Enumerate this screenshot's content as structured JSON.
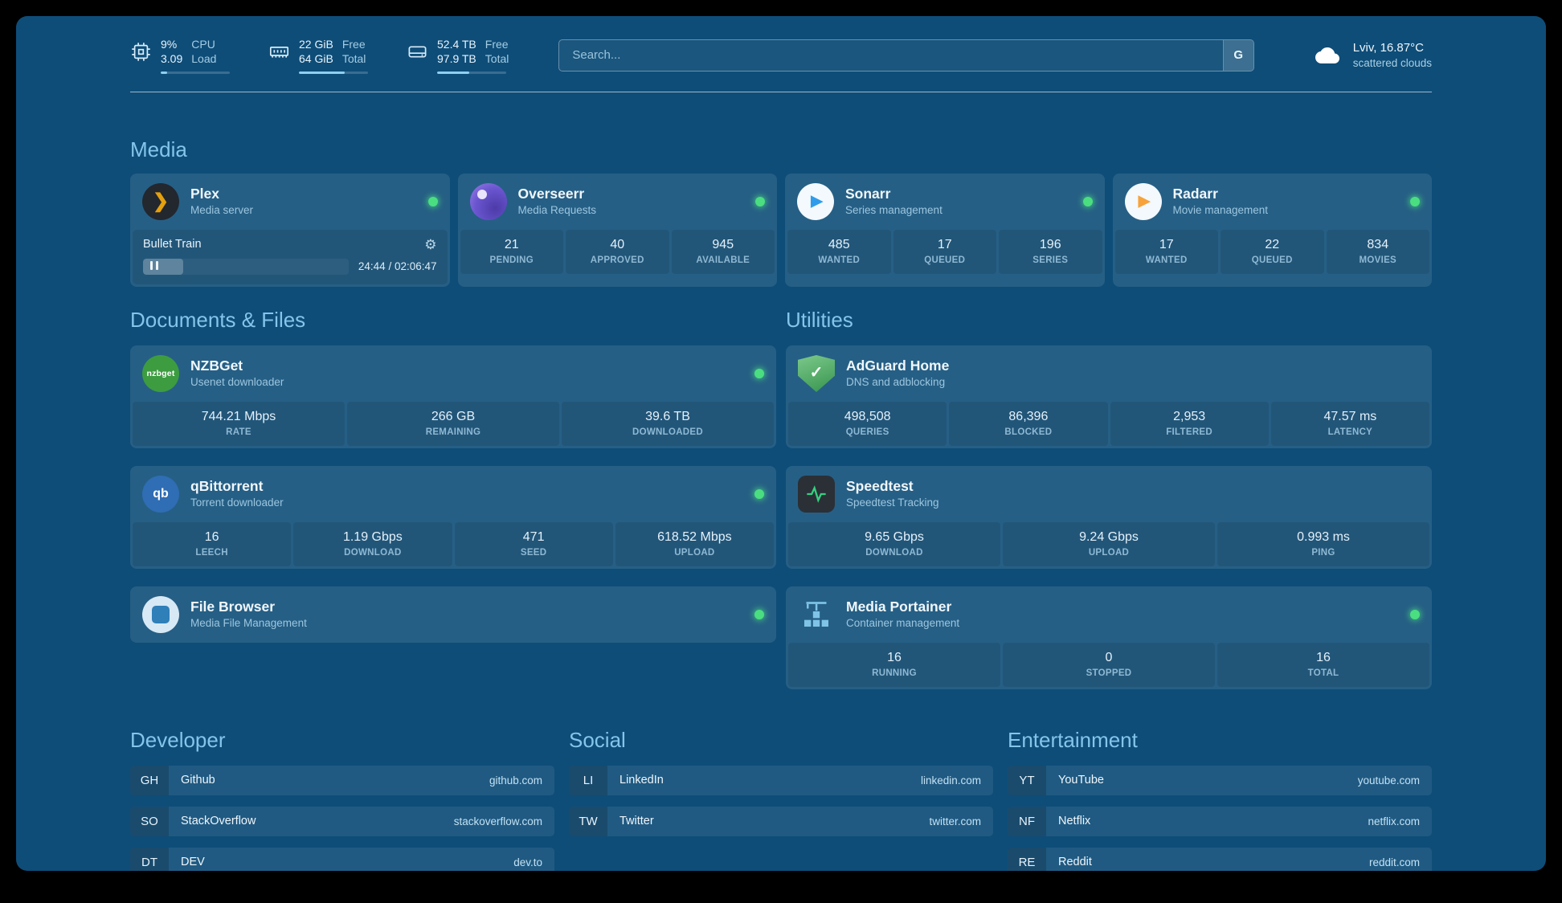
{
  "topbar": {
    "resources": [
      {
        "icon": "cpu-icon",
        "value_primary": "9%",
        "value_secondary": "3.09",
        "label_primary": "CPU",
        "label_secondary": "Load",
        "progress_percent": 9
      },
      {
        "icon": "memory-icon",
        "value_primary": "22 GiB",
        "value_secondary": "64 GiB",
        "label_primary": "Free",
        "label_secondary": "Total",
        "progress_percent": 66
      },
      {
        "icon": "disk-icon",
        "value_primary": "52.4 TB",
        "value_secondary": "97.9 TB",
        "label_primary": "Free",
        "label_secondary": "Total",
        "progress_percent": 46
      }
    ],
    "search": {
      "placeholder": "Search...",
      "provider_label": "G"
    },
    "weather": {
      "location": "Lviv, 16.87°C",
      "condition": "scattered clouds"
    }
  },
  "sections": {
    "media": {
      "title": "Media",
      "plex": {
        "name": "Plex",
        "subtitle": "Media server",
        "online": true,
        "now_playing": {
          "title": "Bullet Train",
          "time": "24:44 / 02:06:47",
          "progress_percent": 19.5
        }
      },
      "cards": [
        {
          "name": "Overseerr",
          "subtitle": "Media Requests",
          "online": true,
          "stats": [
            {
              "value": "21",
              "label": "PENDING"
            },
            {
              "value": "40",
              "label": "APPROVED"
            },
            {
              "value": "945",
              "label": "AVAILABLE"
            }
          ]
        },
        {
          "name": "Sonarr",
          "subtitle": "Series management",
          "online": true,
          "stats": [
            {
              "value": "485",
              "label": "WANTED"
            },
            {
              "value": "17",
              "label": "QUEUED"
            },
            {
              "value": "196",
              "label": "SERIES"
            }
          ]
        },
        {
          "name": "Radarr",
          "subtitle": "Movie management",
          "online": true,
          "stats": [
            {
              "value": "17",
              "label": "WANTED"
            },
            {
              "value": "22",
              "label": "QUEUED"
            },
            {
              "value": "834",
              "label": "MOVIES"
            }
          ]
        }
      ]
    },
    "documents": {
      "title": "Documents & Files",
      "cards": [
        {
          "name": "NZBGet",
          "subtitle": "Usenet downloader",
          "online": true,
          "stats": [
            {
              "value": "744.21 Mbps",
              "label": "RATE"
            },
            {
              "value": "266 GB",
              "label": "REMAINING"
            },
            {
              "value": "39.6 TB",
              "label": "DOWNLOADED"
            }
          ]
        },
        {
          "name": "qBittorrent",
          "subtitle": "Torrent downloader",
          "online": true,
          "stats": [
            {
              "value": "16",
              "label": "LEECH"
            },
            {
              "value": "1.19 Gbps",
              "label": "DOWNLOAD"
            },
            {
              "value": "471",
              "label": "SEED"
            },
            {
              "value": "618.52 Mbps",
              "label": "UPLOAD"
            }
          ]
        },
        {
          "name": "File Browser",
          "subtitle": "Media File Management",
          "online": true,
          "stats": []
        }
      ]
    },
    "utilities": {
      "title": "Utilities",
      "cards": [
        {
          "name": "AdGuard Home",
          "subtitle": "DNS and adblocking",
          "online": false,
          "stats": [
            {
              "value": "498,508",
              "label": "QUERIES"
            },
            {
              "value": "86,396",
              "label": "BLOCKED"
            },
            {
              "value": "2,953",
              "label": "FILTERED"
            },
            {
              "value": "47.57 ms",
              "label": "LATENCY"
            }
          ]
        },
        {
          "name": "Speedtest",
          "subtitle": "Speedtest Tracking",
          "online": false,
          "stats": [
            {
              "value": "9.65 Gbps",
              "label": "DOWNLOAD"
            },
            {
              "value": "9.24 Gbps",
              "label": "UPLOAD"
            },
            {
              "value": "0.993 ms",
              "label": "PING"
            }
          ]
        },
        {
          "name": "Media Portainer",
          "subtitle": "Container management",
          "online": true,
          "stats": [
            {
              "value": "16",
              "label": "RUNNING"
            },
            {
              "value": "0",
              "label": "STOPPED"
            },
            {
              "value": "16",
              "label": "TOTAL"
            }
          ]
        }
      ]
    }
  },
  "bookmarks": {
    "groups": [
      {
        "title": "Developer",
        "items": [
          {
            "abbr": "GH",
            "name": "Github",
            "domain": "github.com"
          },
          {
            "abbr": "SO",
            "name": "StackOverflow",
            "domain": "stackoverflow.com"
          },
          {
            "abbr": "DT",
            "name": "DEV",
            "domain": "dev.to"
          }
        ]
      },
      {
        "title": "Social",
        "items": [
          {
            "abbr": "LI",
            "name": "LinkedIn",
            "domain": "linkedin.com"
          },
          {
            "abbr": "TW",
            "name": "Twitter",
            "domain": "twitter.com"
          }
        ]
      },
      {
        "title": "Entertainment",
        "items": [
          {
            "abbr": "YT",
            "name": "YouTube",
            "domain": "youtube.com"
          },
          {
            "abbr": "NF",
            "name": "Netflix",
            "domain": "netflix.com"
          },
          {
            "abbr": "RE",
            "name": "Reddit",
            "domain": "reddit.com"
          }
        ]
      }
    ]
  },
  "colors": {
    "background": "#0e4d78",
    "heading": "#84c5ea",
    "status_online": "#4ade80",
    "progress_fill": "#8fd0f2"
  }
}
